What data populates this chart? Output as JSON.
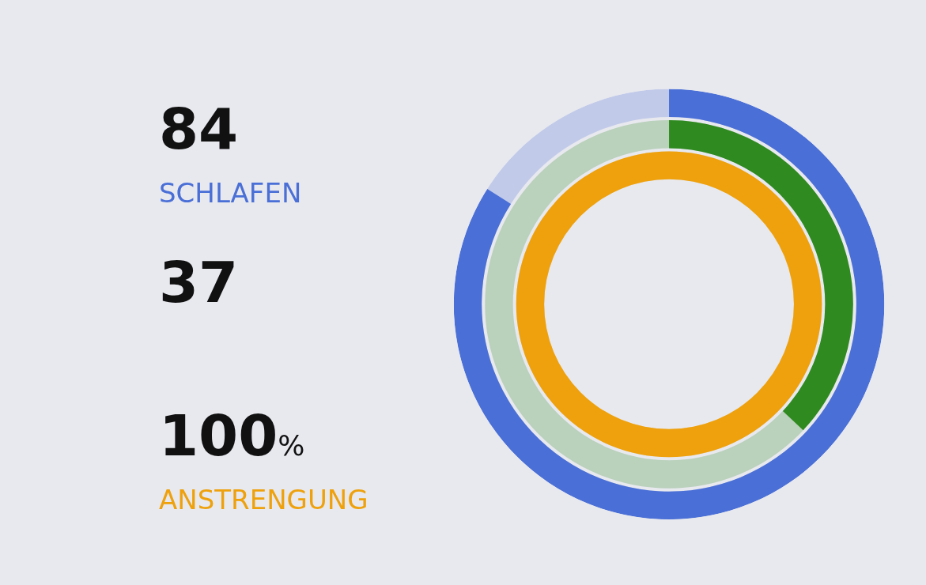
{
  "chart_data": {
    "type": "other",
    "categories": [
      "SCHLAFEN",
      null,
      "ANSTRENGUNG"
    ],
    "values": [
      84,
      37,
      100
    ],
    "value_labels": [
      "84",
      "37",
      "100%"
    ],
    "colors": [
      "#4a6fd6",
      "#2f8a1f",
      "#eea10c"
    ]
  }
}
